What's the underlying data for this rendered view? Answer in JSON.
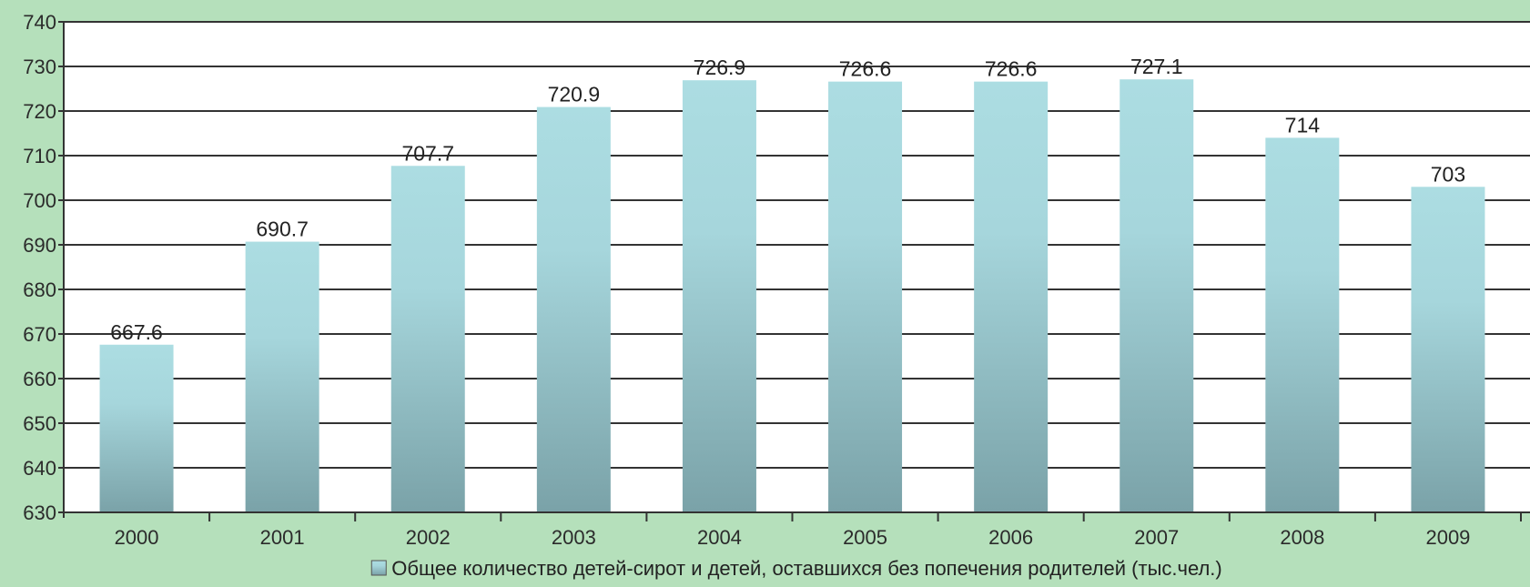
{
  "chart_data": {
    "type": "bar",
    "categories": [
      "2000",
      "2001",
      "2002",
      "2003",
      "2004",
      "2005",
      "2006",
      "2007",
      "2008",
      "2009"
    ],
    "series": [
      {
        "name": "Общее количество детей-сирот и детей, оставшихся без попечения родителей (тыс.чел.)",
        "values": [
          667.6,
          690.7,
          707.7,
          720.9,
          726.9,
          726.6,
          726.6,
          727.1,
          714,
          703
        ]
      }
    ],
    "data_labels": [
      "667.6",
      "690.7",
      "707.7",
      "720.9",
      "726.9",
      "726.6",
      "726.6",
      "727.1",
      "714",
      "703"
    ],
    "ylim": [
      630,
      740
    ],
    "yticks": [
      630,
      640,
      650,
      660,
      670,
      680,
      690,
      700,
      710,
      720,
      730,
      740
    ],
    "grid": true,
    "legend_position": "bottom",
    "colors": {
      "background": "#b5e0bb",
      "plot_background": "#ffffff",
      "bar_top": "#acdde2",
      "bar_bottom": "#7aa2a8",
      "gridline": "#333333"
    }
  }
}
